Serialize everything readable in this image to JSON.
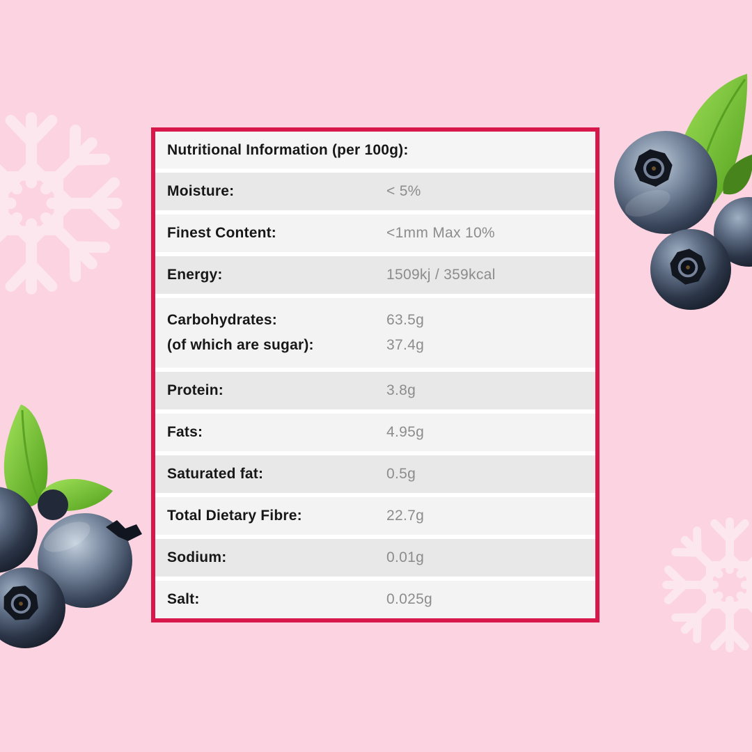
{
  "page": {
    "background_color": "#fcd3e0",
    "accent_border_color": "#d8184a",
    "row_shade_dark": "#e8e8e8",
    "row_shade_light": "#f3f3f3",
    "label_color": "#171717",
    "value_color": "#8c8c8c"
  },
  "decorations": {
    "snowflake_color": "#fde7ef",
    "items": [
      {
        "icon": "snowflake-icon",
        "position": "top-left"
      },
      {
        "icon": "snowflake-icon",
        "position": "bottom-right"
      },
      {
        "icon": "blueberries-icon",
        "position": "top-right"
      },
      {
        "icon": "blueberries-icon",
        "position": "middle-left"
      }
    ]
  },
  "table": {
    "header": "Nutritional Information (per 100g):",
    "rows": [
      {
        "lines": [
          {
            "label": "Moisture:",
            "value": "< 5%"
          }
        ]
      },
      {
        "lines": [
          {
            "label": "Finest Content:",
            "value": "<1mm Max 10%"
          }
        ]
      },
      {
        "lines": [
          {
            "label": "Energy:",
            "value": "1509kj / 359kcal"
          }
        ]
      },
      {
        "lines": [
          {
            "label": "Carbohydrates:",
            "value": "63.5g"
          },
          {
            "label": "(of which are sugar):",
            "value": "37.4g"
          }
        ]
      },
      {
        "lines": [
          {
            "label": "Protein:",
            "value": "3.8g"
          }
        ]
      },
      {
        "lines": [
          {
            "label": "Fats:",
            "value": "4.95g"
          }
        ]
      },
      {
        "lines": [
          {
            "label": "Saturated fat:",
            "value": "0.5g"
          }
        ]
      },
      {
        "lines": [
          {
            "label": "Total Dietary Fibre:",
            "value": "22.7g"
          }
        ]
      },
      {
        "lines": [
          {
            "label": "Sodium:",
            "value": "0.01g"
          }
        ]
      },
      {
        "lines": [
          {
            "label": "Salt:",
            "value": "0.025g"
          }
        ]
      }
    ]
  }
}
